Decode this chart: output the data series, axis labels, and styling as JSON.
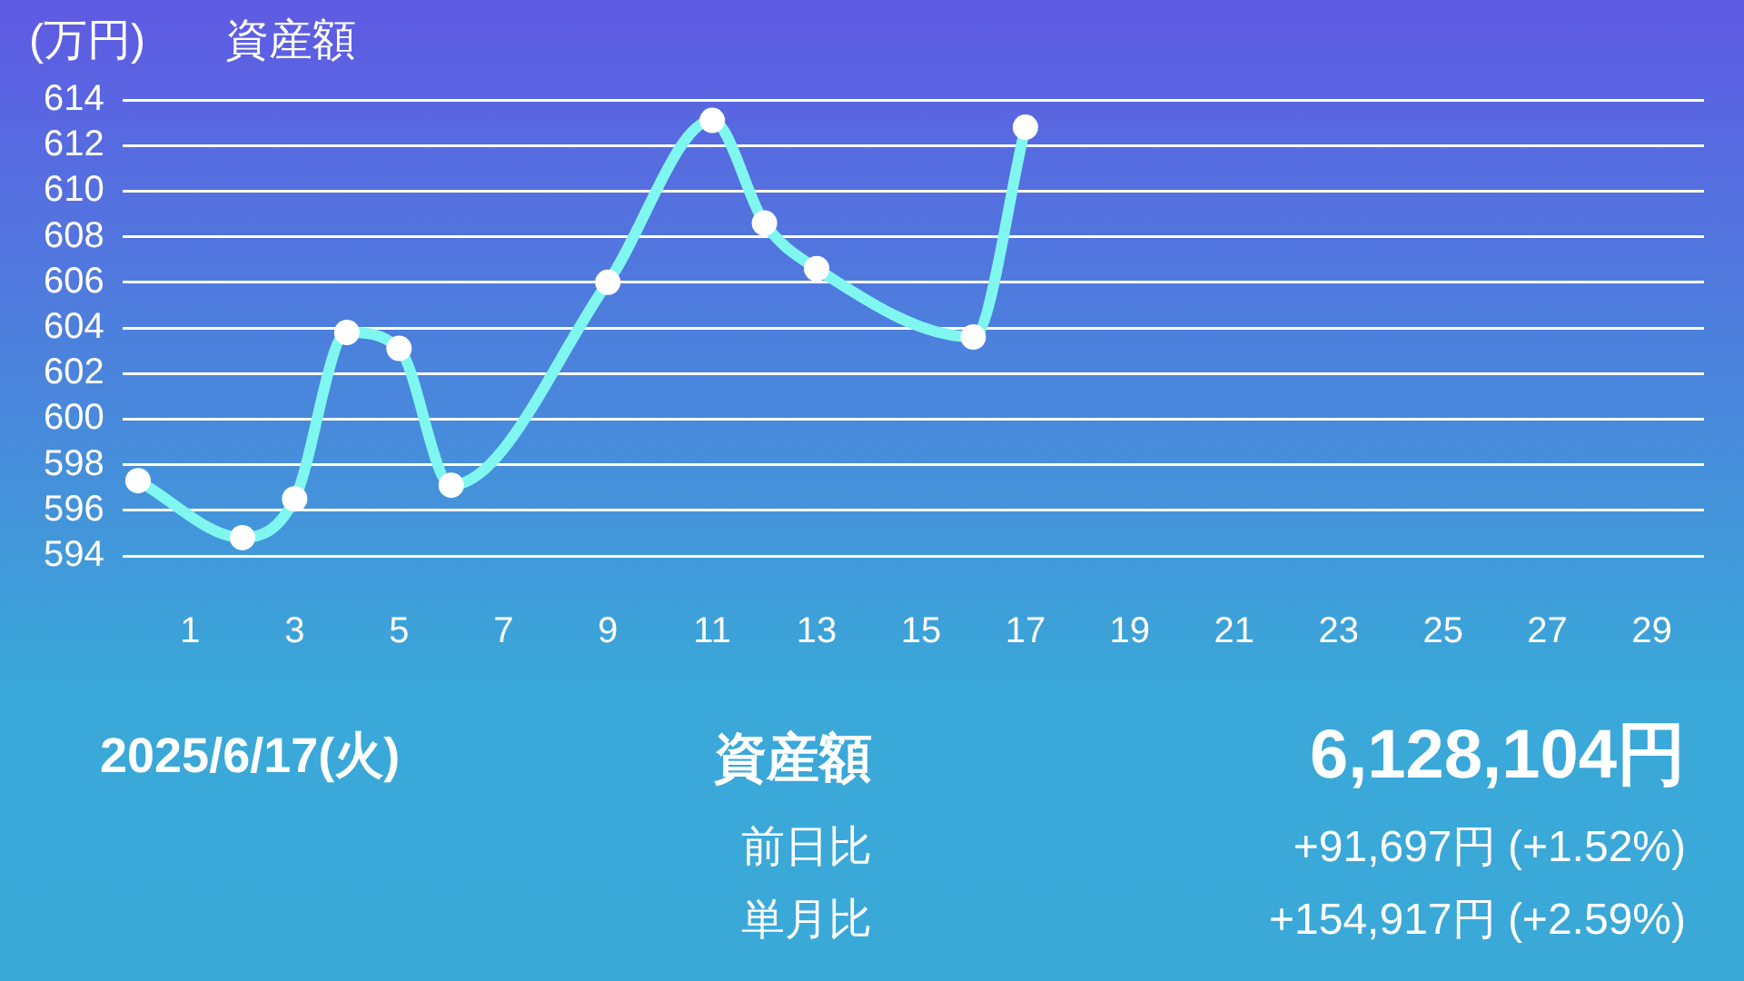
{
  "chart_data": {
    "type": "line",
    "title": "資産額",
    "ylabel": "(万円)",
    "x": [
      0,
      2,
      3,
      4,
      5,
      6,
      9,
      11,
      12,
      13,
      16,
      17
    ],
    "series": [
      {
        "color": "#7ff7f0",
        "values": [
          597.3,
          594.8,
          596.5,
          603.8,
          603.1,
          597.1,
          606.0,
          613.1,
          608.6,
          606.6,
          603.6,
          612.8
        ]
      }
    ],
    "xlim": [
      -0.3,
      30
    ],
    "xticks": [
      1,
      3,
      5,
      7,
      9,
      11,
      13,
      15,
      17,
      19,
      21,
      23,
      25,
      27,
      29
    ],
    "ylim": [
      594,
      614
    ],
    "yticks": [
      594,
      596,
      598,
      600,
      602,
      604,
      606,
      608,
      610,
      612,
      614
    ],
    "grid": "y",
    "legend": false,
    "marker": "circle",
    "line_style": "solid",
    "annotations": [
      "2025/6/17(火)",
      "資産額",
      "6,128,104円",
      "前日比",
      "+91,697円 (+1.52%)",
      "単月比",
      "+154,917円 (+2.59%)"
    ]
  }
}
